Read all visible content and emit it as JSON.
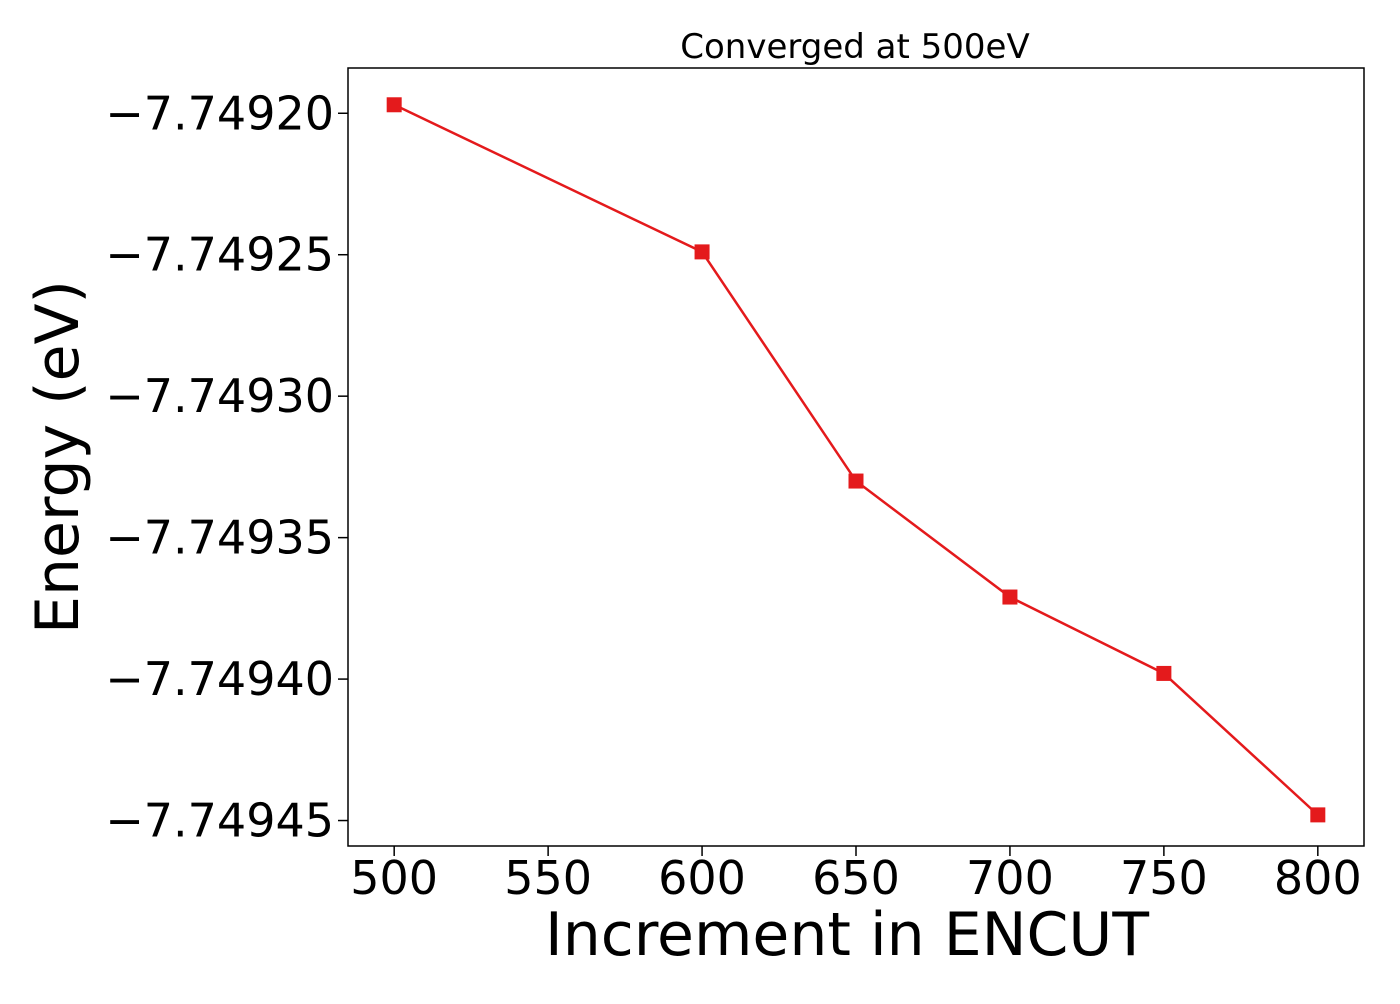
{
  "chart_data": {
    "type": "line",
    "title": "Converged at 500eV",
    "xlabel": "Increment in ENCUT",
    "ylabel": "Energy (eV)",
    "x": [
      500,
      600,
      650,
      700,
      750,
      800
    ],
    "series": [
      {
        "values": [
          -7.749197,
          -7.749249,
          -7.74933,
          -7.749371,
          -7.749398,
          -7.749448
        ],
        "color": "#e41a1c",
        "marker": "square"
      }
    ],
    "xticks": [
      500,
      550,
      600,
      650,
      700,
      750,
      800
    ],
    "xtick_labels": [
      "500",
      "550",
      "600",
      "650",
      "700",
      "750",
      "800"
    ],
    "yticks": [
      -7.7492,
      -7.74925,
      -7.7493,
      -7.74935,
      -7.7494,
      -7.74945
    ],
    "ytick_labels": [
      "−7.74920",
      "−7.74925",
      "−7.74930",
      "−7.74935",
      "−7.74940",
      "−7.74945"
    ],
    "xlim": [
      485,
      815
    ],
    "ylim": [
      -7.749459,
      -7.749184
    ],
    "grid": false,
    "legend": "none"
  }
}
